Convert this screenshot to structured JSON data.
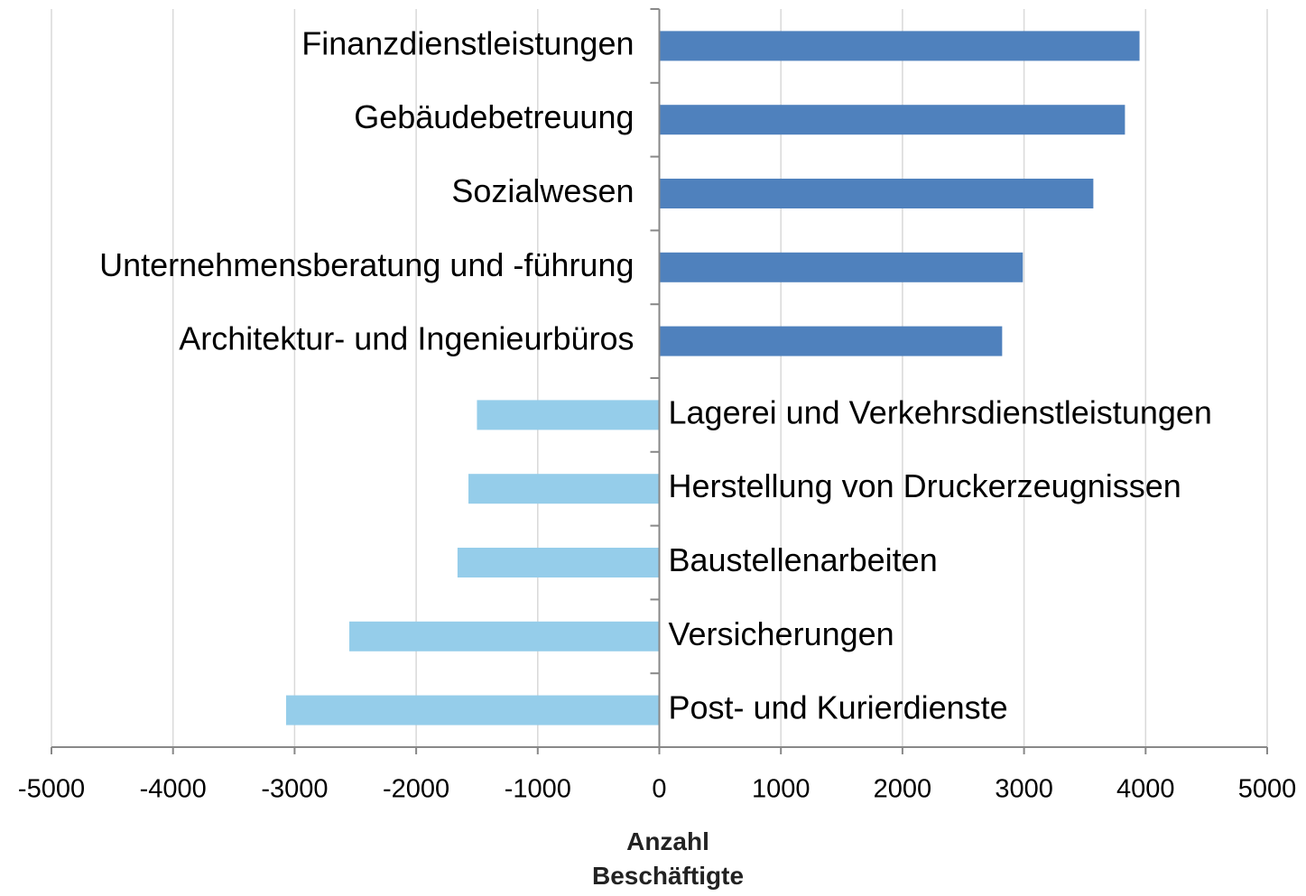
{
  "chart_data": {
    "type": "barh",
    "categories": [
      "Finanzdienstleistungen",
      "Gebäudebetreuung",
      "Sozialwesen",
      "Unternehmensberatung und -führung",
      "Architektur- und Ingenieurbüros",
      "Lagerei und Verkehrsdienstleistungen",
      "Herstellung von Druckerzeugnissen",
      "Baustellenarbeiten",
      "Versicherungen",
      "Post- und Kurierdienste"
    ],
    "values": [
      3950,
      3830,
      3570,
      2990,
      2820,
      -1500,
      -1570,
      -1660,
      -2550,
      -3070
    ],
    "colors": [
      "#4f81bd",
      "#4f81bd",
      "#4f81bd",
      "#4f81bd",
      "#4f81bd",
      "#95cdea",
      "#95cdea",
      "#95cdea",
      "#95cdea",
      "#95cdea"
    ],
    "xlabel": "Anzahl Beschäftigte",
    "xlim": [
      -5000,
      5000
    ],
    "xticks": [
      -5000,
      -4000,
      -3000,
      -2000,
      -1000,
      0,
      1000,
      2000,
      3000,
      4000,
      5000
    ],
    "grid": true
  }
}
